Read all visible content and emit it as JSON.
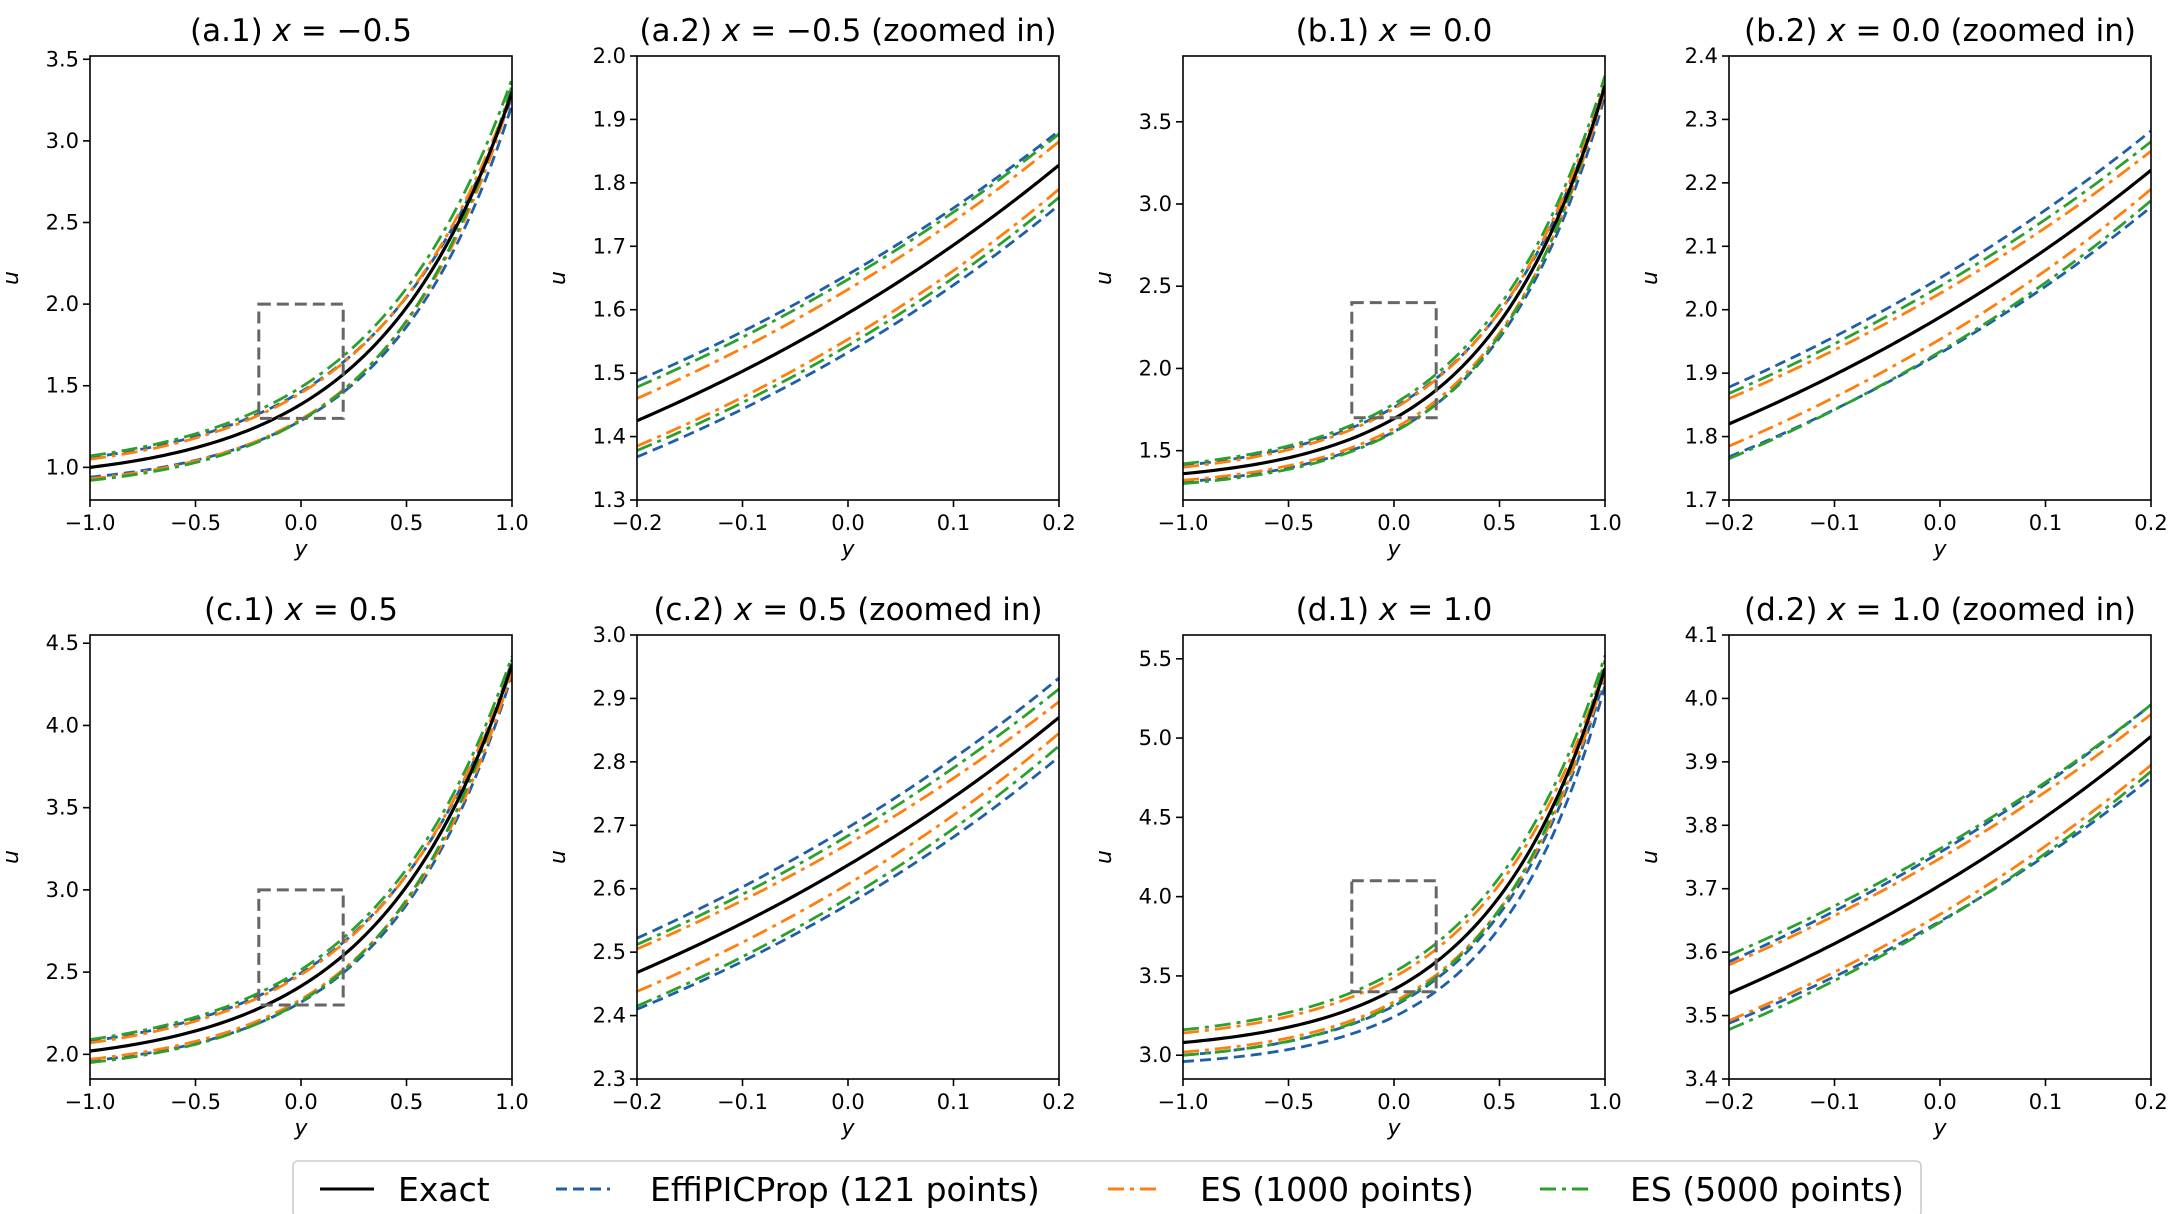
{
  "legend": {
    "location": "bottom-center",
    "entries": [
      {
        "key": "exact",
        "label": "Exact",
        "color": "#000000",
        "dash": "solid"
      },
      {
        "key": "effipicprop",
        "label": "EffiPICProp (121 points)",
        "color": "#1f5fa8",
        "dash": "dashed"
      },
      {
        "key": "es1000",
        "label": "ES (1000 points)",
        "color": "#ff7f0e",
        "dash": "dashdot"
      },
      {
        "key": "es5000",
        "label": "ES (5000 points)",
        "color": "#2ca02c",
        "dash": "dashdot"
      }
    ]
  },
  "chart_data": [
    {
      "id": "a1",
      "type": "line",
      "title_prefix": "(a.1) ",
      "title_var": "x",
      "title_value": " = −0.5",
      "title_suffix": "",
      "xlabel": "y",
      "ylabel": "u",
      "xlim": [
        -1.0,
        1.0
      ],
      "ylim": [
        0.8,
        3.52
      ],
      "xticks": [
        -1.0,
        -0.5,
        0.0,
        0.5,
        1.0
      ],
      "xtick_labels": [
        "−1.0",
        "−0.5",
        "0.0",
        "0.5",
        "1.0"
      ],
      "yticks": [
        1.0,
        1.5,
        2.0,
        2.5,
        3.0,
        3.5
      ],
      "ytick_labels": [
        "1.0",
        "1.5",
        "2.0",
        "2.5",
        "3.0",
        "3.5"
      ],
      "zoom_box": {
        "x": [
          -0.2,
          0.2
        ],
        "y": [
          1.3,
          2.0
        ]
      },
      "series": [
        {
          "name": "Exact",
          "y_start": 1.0,
          "y_end": 3.3,
          "k": 1.6
        },
        {
          "name": "EffiPICProp (121 points) upper",
          "y_start": 1.06,
          "y_end": 3.27,
          "k": 1.5
        },
        {
          "name": "EffiPICProp (121 points) lower",
          "y_start": 0.94,
          "y_end": 3.22,
          "k": 1.72
        },
        {
          "name": "ES (1000 points) upper",
          "y_start": 1.05,
          "y_end": 3.31,
          "k": 1.52
        },
        {
          "name": "ES (1000 points) lower",
          "y_start": 0.93,
          "y_end": 3.29,
          "k": 1.7
        },
        {
          "name": "ES (5000 points) upper",
          "y_start": 1.07,
          "y_end": 3.38,
          "k": 1.5
        },
        {
          "name": "ES (5000 points) lower",
          "y_start": 0.92,
          "y_end": 3.34,
          "k": 1.72
        }
      ]
    },
    {
      "id": "a2",
      "type": "line",
      "title_prefix": "(a.2) ",
      "title_var": "x",
      "title_value": " = −0.5",
      "title_suffix": " (zoomed in)",
      "xlabel": "y",
      "ylabel": "u",
      "xlim": [
        -0.2,
        0.2
      ],
      "ylim": [
        1.3,
        2.0
      ],
      "xticks": [
        -0.2,
        -0.1,
        0.0,
        0.1,
        0.2
      ],
      "xtick_labels": [
        "−0.2",
        "−0.1",
        "0.0",
        "0.1",
        "0.2"
      ],
      "yticks": [
        1.3,
        1.4,
        1.5,
        1.6,
        1.7,
        1.8,
        1.9,
        2.0
      ],
      "ytick_labels": [
        "1.3",
        "1.4",
        "1.5",
        "1.6",
        "1.7",
        "1.8",
        "1.9",
        "2.0"
      ],
      "zoom_box": null,
      "series": [
        {
          "name": "Exact",
          "y_start": 1.425,
          "y_end": 1.828,
          "k": 1.6
        },
        {
          "name": "EffiPICProp (121 points) upper",
          "y_start": 1.488,
          "y_end": 1.882,
          "k": 1.5
        },
        {
          "name": "EffiPICProp (121 points) lower",
          "y_start": 1.368,
          "y_end": 1.765,
          "k": 1.72
        },
        {
          "name": "ES (1000 points) upper",
          "y_start": 1.46,
          "y_end": 1.865,
          "k": 1.52
        },
        {
          "name": "ES (1000 points) lower",
          "y_start": 1.385,
          "y_end": 1.79,
          "k": 1.7
        },
        {
          "name": "ES (5000 points) upper",
          "y_start": 1.478,
          "y_end": 1.877,
          "k": 1.5
        },
        {
          "name": "ES (5000 points) lower",
          "y_start": 1.378,
          "y_end": 1.777,
          "k": 1.72
        }
      ]
    },
    {
      "id": "b1",
      "type": "line",
      "title_prefix": "(b.1) ",
      "title_var": "x",
      "title_value": " = 0.0",
      "title_suffix": "",
      "xlabel": "y",
      "ylabel": "u",
      "xlim": [
        -1.0,
        1.0
      ],
      "ylim": [
        1.2,
        3.9
      ],
      "xticks": [
        -1.0,
        -0.5,
        0.0,
        0.5,
        1.0
      ],
      "xtick_labels": [
        "−1.0",
        "−0.5",
        "0.0",
        "0.5",
        "1.0"
      ],
      "yticks": [
        1.5,
        2.0,
        2.5,
        3.0,
        3.5
      ],
      "ytick_labels": [
        "1.5",
        "2.0",
        "2.5",
        "3.0",
        "3.5"
      ],
      "zoom_box": {
        "x": [
          -0.2,
          0.2
        ],
        "y": [
          1.7,
          2.4
        ]
      },
      "series": [
        {
          "name": "Exact",
          "y_start": 1.36,
          "y_end": 3.72,
          "k": 1.8
        },
        {
          "name": "EffiPICProp (121 points) upper",
          "y_start": 1.41,
          "y_end": 3.7,
          "k": 1.7
        },
        {
          "name": "EffiPICProp (121 points) lower",
          "y_start": 1.31,
          "y_end": 3.66,
          "k": 1.9
        },
        {
          "name": "ES (1000 points) upper",
          "y_start": 1.4,
          "y_end": 3.74,
          "k": 1.72
        },
        {
          "name": "ES (1000 points) lower",
          "y_start": 1.32,
          "y_end": 3.7,
          "k": 1.88
        },
        {
          "name": "ES (5000 points) upper",
          "y_start": 1.42,
          "y_end": 3.78,
          "k": 1.7
        },
        {
          "name": "ES (5000 points) lower",
          "y_start": 1.3,
          "y_end": 3.74,
          "k": 1.92
        }
      ]
    },
    {
      "id": "b2",
      "type": "line",
      "title_prefix": "(b.2) ",
      "title_var": "x",
      "title_value": " = 0.0",
      "title_suffix": " (zoomed in)",
      "xlabel": "y",
      "ylabel": "u",
      "xlim": [
        -0.2,
        0.2
      ],
      "ylim": [
        1.7,
        2.4
      ],
      "xticks": [
        -0.2,
        -0.1,
        0.0,
        0.1,
        0.2
      ],
      "xtick_labels": [
        "−0.2",
        "−0.1",
        "0.0",
        "0.1",
        "0.2"
      ],
      "yticks": [
        1.7,
        1.8,
        1.9,
        2.0,
        2.1,
        2.2,
        2.3,
        2.4
      ],
      "ytick_labels": [
        "1.7",
        "1.8",
        "1.9",
        "2.0",
        "2.1",
        "2.2",
        "2.3",
        "2.4"
      ],
      "zoom_box": null,
      "series": [
        {
          "name": "Exact",
          "y_start": 1.82,
          "y_end": 2.22,
          "k": 1.6
        },
        {
          "name": "EffiPICProp (121 points) upper",
          "y_start": 1.878,
          "y_end": 2.282,
          "k": 1.5
        },
        {
          "name": "EffiPICProp (121 points) lower",
          "y_start": 1.768,
          "y_end": 2.162,
          "k": 1.72
        },
        {
          "name": "ES (1000 points) upper",
          "y_start": 1.86,
          "y_end": 2.25,
          "k": 1.52
        },
        {
          "name": "ES (1000 points) lower",
          "y_start": 1.785,
          "y_end": 2.19,
          "k": 1.7
        },
        {
          "name": "ES (5000 points) upper",
          "y_start": 1.868,
          "y_end": 2.265,
          "k": 1.5
        },
        {
          "name": "ES (5000 points) lower",
          "y_start": 1.765,
          "y_end": 2.172,
          "k": 1.72
        }
      ]
    },
    {
      "id": "c1",
      "type": "line",
      "title_prefix": "(c.1) ",
      "title_var": "x",
      "title_value": " = 0.5",
      "title_suffix": "",
      "xlabel": "y",
      "ylabel": "u",
      "xlim": [
        -1.0,
        1.0
      ],
      "ylim": [
        1.85,
        4.55
      ],
      "xticks": [
        -1.0,
        -0.5,
        0.0,
        0.5,
        1.0
      ],
      "xtick_labels": [
        "−1.0",
        "−0.5",
        "0.0",
        "0.5",
        "1.0"
      ],
      "yticks": [
        2.0,
        2.5,
        3.0,
        3.5,
        4.0,
        4.5
      ],
      "ytick_labels": [
        "2.0",
        "2.5",
        "3.0",
        "3.5",
        "4.0",
        "4.5"
      ],
      "zoom_box": {
        "x": [
          -0.2,
          0.2
        ],
        "y": [
          2.3,
          3.0
        ]
      },
      "series": [
        {
          "name": "Exact",
          "y_start": 2.02,
          "y_end": 4.37,
          "k": 1.6
        },
        {
          "name": "EffiPICProp (121 points) upper",
          "y_start": 2.08,
          "y_end": 4.35,
          "k": 1.5
        },
        {
          "name": "EffiPICProp (121 points) lower",
          "y_start": 1.96,
          "y_end": 4.31,
          "k": 1.72
        },
        {
          "name": "ES (1000 points) upper",
          "y_start": 2.07,
          "y_end": 4.38,
          "k": 1.52
        },
        {
          "name": "ES (1000 points) lower",
          "y_start": 1.97,
          "y_end": 4.33,
          "k": 1.7
        },
        {
          "name": "ES (5000 points) upper",
          "y_start": 2.09,
          "y_end": 4.42,
          "k": 1.5
        },
        {
          "name": "ES (5000 points) lower",
          "y_start": 1.95,
          "y_end": 4.4,
          "k": 1.72
        }
      ]
    },
    {
      "id": "c2",
      "type": "line",
      "title_prefix": "(c.2) ",
      "title_var": "x",
      "title_value": " = 0.5",
      "title_suffix": " (zoomed in)",
      "xlabel": "y",
      "ylabel": "u",
      "xlim": [
        -0.2,
        0.2
      ],
      "ylim": [
        2.3,
        3.0
      ],
      "xticks": [
        -0.2,
        -0.1,
        0.0,
        0.1,
        0.2
      ],
      "xtick_labels": [
        "−0.2",
        "−0.1",
        "0.0",
        "0.1",
        "0.2"
      ],
      "yticks": [
        2.3,
        2.4,
        2.5,
        2.6,
        2.7,
        2.8,
        2.9,
        3.0
      ],
      "ytick_labels": [
        "2.3",
        "2.4",
        "2.5",
        "2.6",
        "2.7",
        "2.8",
        "2.9",
        "3.0"
      ],
      "zoom_box": null,
      "series": [
        {
          "name": "Exact",
          "y_start": 2.468,
          "y_end": 2.87,
          "k": 1.6
        },
        {
          "name": "EffiPICProp (121 points) upper",
          "y_start": 2.522,
          "y_end": 2.932,
          "k": 1.5
        },
        {
          "name": "EffiPICProp (121 points) lower",
          "y_start": 2.41,
          "y_end": 2.808,
          "k": 1.72
        },
        {
          "name": "ES (1000 points) upper",
          "y_start": 2.505,
          "y_end": 2.895,
          "k": 1.52
        },
        {
          "name": "ES (1000 points) lower",
          "y_start": 2.438,
          "y_end": 2.845,
          "k": 1.7
        },
        {
          "name": "ES (5000 points) upper",
          "y_start": 2.512,
          "y_end": 2.915,
          "k": 1.5
        },
        {
          "name": "ES (5000 points) lower",
          "y_start": 2.415,
          "y_end": 2.825,
          "k": 1.72
        }
      ]
    },
    {
      "id": "d1",
      "type": "line",
      "title_prefix": "(d.1) ",
      "title_var": "x",
      "title_value": " = 1.0",
      "title_suffix": "",
      "xlabel": "y",
      "ylabel": "u",
      "xlim": [
        -1.0,
        1.0
      ],
      "ylim": [
        2.85,
        5.65
      ],
      "xticks": [
        -1.0,
        -0.5,
        0.0,
        0.5,
        1.0
      ],
      "xtick_labels": [
        "−1.0",
        "−0.5",
        "0.0",
        "0.5",
        "1.0"
      ],
      "yticks": [
        3.0,
        3.5,
        4.0,
        4.5,
        5.0,
        5.5
      ],
      "ytick_labels": [
        "3.0",
        "3.5",
        "4.0",
        "4.5",
        "5.0",
        "5.5"
      ],
      "zoom_box": {
        "x": [
          -0.2,
          0.2
        ],
        "y": [
          3.4,
          4.1
        ]
      },
      "series": [
        {
          "name": "Exact",
          "y_start": 3.08,
          "y_end": 5.44,
          "k": 1.8
        },
        {
          "name": "EffiPICProp (121 points) upper",
          "y_start": 3.0,
          "y_end": 5.39,
          "k": 1.9
        },
        {
          "name": "EffiPICProp (121 points) lower",
          "y_start": 2.96,
          "y_end": 5.33,
          "k": 2.0
        },
        {
          "name": "ES (1000 points) upper",
          "y_start": 3.14,
          "y_end": 5.46,
          "k": 1.72
        },
        {
          "name": "ES (1000 points) lower",
          "y_start": 3.02,
          "y_end": 5.41,
          "k": 1.88
        },
        {
          "name": "ES (5000 points) upper",
          "y_start": 3.16,
          "y_end": 5.52,
          "k": 1.7
        },
        {
          "name": "ES (5000 points) lower",
          "y_start": 3.0,
          "y_end": 5.49,
          "k": 1.92
        }
      ]
    },
    {
      "id": "d2",
      "type": "line",
      "title_prefix": "(d.2) ",
      "title_var": "x",
      "title_value": " = 1.0",
      "title_suffix": " (zoomed in)",
      "xlabel": "y",
      "ylabel": "u",
      "xlim": [
        -0.2,
        0.2
      ],
      "ylim": [
        3.4,
        4.1
      ],
      "xticks": [
        -0.2,
        -0.1,
        0.0,
        0.1,
        0.2
      ],
      "xtick_labels": [
        "−0.2",
        "−0.1",
        "0.0",
        "0.1",
        "0.2"
      ],
      "yticks": [
        3.4,
        3.5,
        3.6,
        3.7,
        3.8,
        3.9,
        4.0,
        4.1
      ],
      "ytick_labels": [
        "3.4",
        "3.5",
        "3.6",
        "3.7",
        "3.8",
        "3.9",
        "4.0",
        "4.1"
      ],
      "zoom_box": null,
      "series": [
        {
          "name": "Exact",
          "y_start": 3.535,
          "y_end": 3.94,
          "k": 1.6
        },
        {
          "name": "EffiPICProp (121 points) upper",
          "y_start": 3.585,
          "y_end": 3.99,
          "k": 1.5
        },
        {
          "name": "EffiPICProp (121 points) lower",
          "y_start": 3.488,
          "y_end": 3.875,
          "k": 1.72
        },
        {
          "name": "ES (1000 points) upper",
          "y_start": 3.58,
          "y_end": 3.975,
          "k": 1.52
        },
        {
          "name": "ES (1000 points) lower",
          "y_start": 3.492,
          "y_end": 3.895,
          "k": 1.7
        },
        {
          "name": "ES (5000 points) upper",
          "y_start": 3.595,
          "y_end": 3.99,
          "k": 1.5
        },
        {
          "name": "ES (5000 points) lower",
          "y_start": 3.478,
          "y_end": 3.885,
          "k": 1.72
        }
      ]
    }
  ]
}
